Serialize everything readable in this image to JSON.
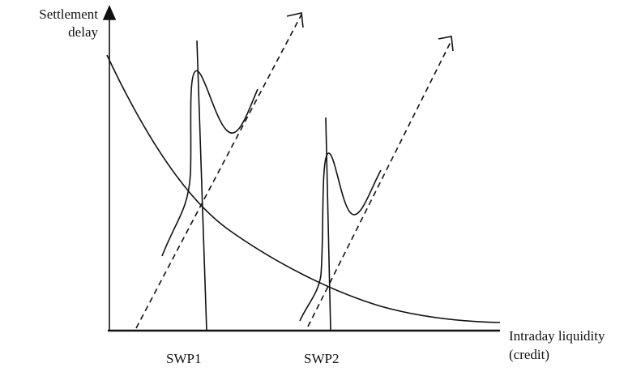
{
  "y_axis_label_lines": [
    "Settlement",
    "delay"
  ],
  "x_axis_label_lines": [
    "Intraday liquidity",
    "(credit)"
  ],
  "markers": [
    "SWP1",
    "SWP2"
  ],
  "colors": {
    "ink": "#111111",
    "background": "#ffffff"
  }
}
